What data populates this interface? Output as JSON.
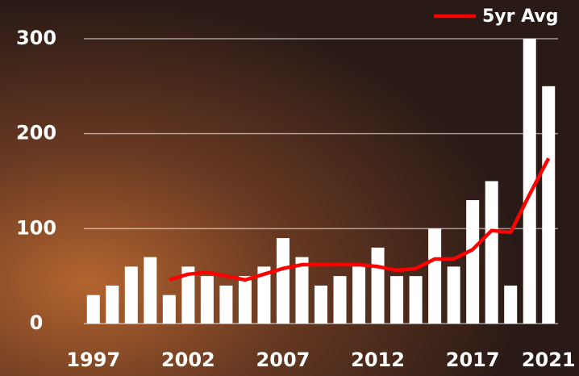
{
  "chart_data": {
    "type": "bar",
    "categories": [
      "1997",
      null,
      null,
      null,
      null,
      "2002",
      null,
      null,
      null,
      null,
      "2007",
      null,
      null,
      null,
      null,
      "2012",
      null,
      null,
      null,
      null,
      "2017",
      null,
      null,
      null,
      "2021"
    ],
    "values": [
      30,
      40,
      60,
      70,
      30,
      60,
      50,
      40,
      50,
      60,
      90,
      70,
      40,
      50,
      60,
      80,
      50,
      50,
      100,
      60,
      130,
      150,
      40,
      300,
      250
    ],
    "color": "#ffffff",
    "series": [
      {
        "name": "5yr Avg",
        "type": "line",
        "color": "#ff0000",
        "values": [
          null,
          null,
          null,
          null,
          46,
          52,
          54,
          50,
          46,
          52,
          58,
          62,
          62,
          62,
          62,
          60,
          56,
          58,
          68,
          68,
          78,
          98,
          96,
          136,
          174
        ]
      }
    ],
    "ylim": [
      0,
      300
    ],
    "yticks": [
      0,
      100,
      200,
      300
    ],
    "grid": true,
    "legend": "top-right"
  }
}
